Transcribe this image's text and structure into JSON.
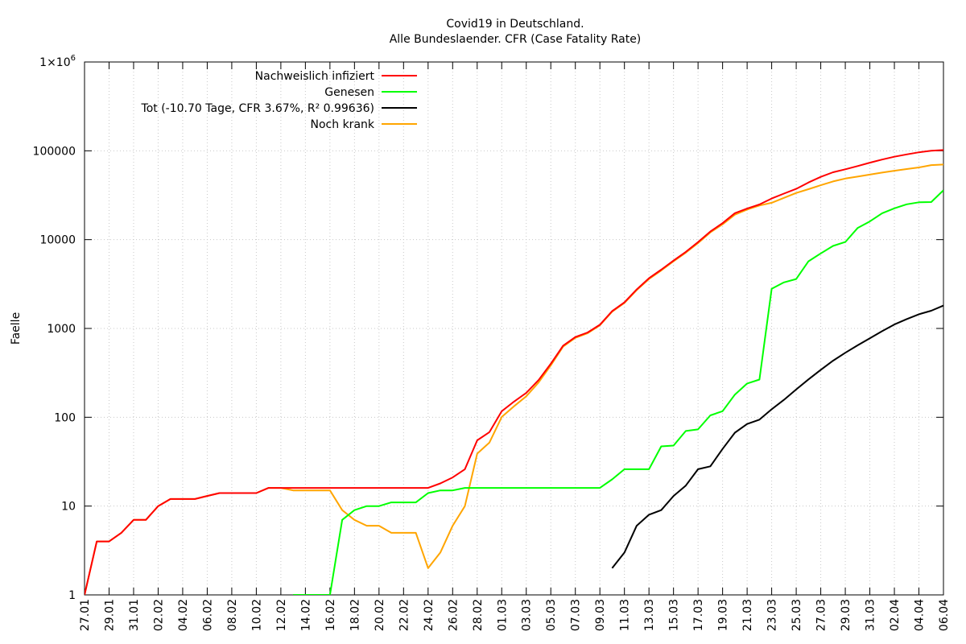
{
  "chart_data": {
    "type": "line",
    "title": "Covid19 in Deutschland.",
    "subtitle": "Alle Bundeslaender. CFR (Case Fatality Rate)",
    "ylabel": "Faelle",
    "xlabel": "",
    "yscale": "log",
    "ylim": [
      1,
      1000000
    ],
    "y_ticks": [
      {
        "value": 1,
        "label": "1"
      },
      {
        "value": 10,
        "label": "10"
      },
      {
        "value": 100,
        "label": "100"
      },
      {
        "value": 1000,
        "label": "1000"
      },
      {
        "value": 10000,
        "label": "10000"
      },
      {
        "value": 100000,
        "label": "100000"
      },
      {
        "value": 1000000,
        "label": "1×10",
        "sup": "6"
      }
    ],
    "x_start": "2020-01-27",
    "x_end": "2020-04-06",
    "x_tick_labels": [
      "27.01",
      "29.01",
      "31.01",
      "02.02",
      "04.02",
      "06.02",
      "08.02",
      "10.02",
      "12.02",
      "14.02",
      "16.02",
      "18.02",
      "20.02",
      "22.02",
      "24.02",
      "26.02",
      "28.02",
      "01.03",
      "03.03",
      "05.03",
      "07.03",
      "09.03",
      "11.03",
      "13.03",
      "15.03",
      "17.03",
      "19.03",
      "21.03",
      "23.03",
      "25.03",
      "27.03",
      "29.03",
      "31.03",
      "02.04",
      "04.04",
      "06.04"
    ],
    "grid": true,
    "legend_position": "top-left",
    "series": [
      {
        "name": "Nachweislich infiziert",
        "color": "#ff0000",
        "x": [
          "27.01",
          "28.01",
          "29.01",
          "30.01",
          "31.01",
          "01.02",
          "02.02",
          "03.02",
          "04.02",
          "05.02",
          "06.02",
          "07.02",
          "08.02",
          "09.02",
          "10.02",
          "11.02",
          "12.02",
          "13.02",
          "14.02",
          "15.02",
          "16.02",
          "17.02",
          "18.02",
          "19.02",
          "20.02",
          "21.02",
          "22.02",
          "23.02",
          "24.02",
          "25.02",
          "26.02",
          "27.02",
          "28.02",
          "29.02",
          "01.03",
          "02.03",
          "03.03",
          "04.03",
          "05.03",
          "06.03",
          "07.03",
          "08.03",
          "09.03",
          "10.03",
          "11.03",
          "12.03",
          "13.03",
          "14.03",
          "15.03",
          "16.03",
          "17.03",
          "18.03",
          "19.03",
          "20.03",
          "21.03",
          "22.03",
          "23.03",
          "24.03",
          "25.03",
          "26.03",
          "27.03",
          "28.03",
          "29.03",
          "30.03",
          "31.03",
          "01.04",
          "02.04",
          "03.04",
          "04.04",
          "05.04",
          "06.04"
        ],
        "y": [
          1,
          4,
          4,
          5,
          7,
          7,
          10,
          12,
          12,
          12,
          13,
          14,
          14,
          14,
          14,
          16,
          16,
          16,
          16,
          16,
          16,
          16,
          16,
          16,
          16,
          16,
          16,
          16,
          16,
          18,
          21,
          26,
          55,
          68,
          117,
          150,
          188,
          262,
          400,
          640,
          800,
          900,
          1100,
          1565,
          1966,
          2745,
          3675,
          4585,
          5813,
          7272,
          9360,
          12327,
          15320,
          19848,
          22364,
          24873,
          29056,
          32986,
          37323,
          43938,
          50871,
          57298,
          61913,
          67366,
          73522,
          79696,
          85778,
          91159,
          96092,
          100123,
          102000
        ]
      },
      {
        "name": "Genesen",
        "color": "#00ff00",
        "x": [
          "13.02",
          "14.02",
          "15.02",
          "16.02",
          "17.02",
          "18.02",
          "19.02",
          "20.02",
          "21.02",
          "22.02",
          "23.02",
          "24.02",
          "25.02",
          "26.02",
          "27.02",
          "28.02",
          "29.02",
          "01.03",
          "02.03",
          "03.03",
          "04.03",
          "05.03",
          "06.03",
          "07.03",
          "08.03",
          "09.03",
          "10.03",
          "11.03",
          "12.03",
          "13.03",
          "14.03",
          "15.03",
          "16.03",
          "17.03",
          "18.03",
          "19.03",
          "20.03",
          "21.03",
          "22.03",
          "23.03",
          "24.03",
          "25.03",
          "26.03",
          "27.03",
          "28.03",
          "29.03",
          "30.03",
          "31.03",
          "01.04",
          "02.04",
          "03.04",
          "04.04",
          "05.04",
          "06.04"
        ],
        "y": [
          1,
          1,
          1,
          1,
          7,
          9,
          10,
          10,
          11,
          11,
          11,
          14,
          15,
          15,
          16,
          16,
          16,
          16,
          16,
          16,
          16,
          16,
          16,
          16,
          16,
          16,
          20,
          26,
          26,
          26,
          47,
          48,
          70,
          73,
          105,
          117,
          180,
          240,
          266,
          2800,
          3300,
          3600,
          5700,
          7000,
          8500,
          9400,
          13500,
          16000,
          19800,
          22500,
          25000,
          26300,
          26500,
          36000
        ]
      },
      {
        "name": "Tot (-10.70 Tage, CFR 3.67%, R² 0.99636)",
        "color": "#000000",
        "x": [
          "10.03",
          "11.03",
          "12.03",
          "13.03",
          "14.03",
          "15.03",
          "16.03",
          "17.03",
          "18.03",
          "19.03",
          "20.03",
          "21.03",
          "22.03",
          "23.03",
          "24.03",
          "25.03",
          "26.03",
          "27.03",
          "28.03",
          "29.03",
          "30.03",
          "31.03",
          "01.04",
          "02.04",
          "03.04",
          "04.04",
          "05.04",
          "06.04"
        ],
        "y": [
          2,
          3,
          6,
          8,
          9,
          13,
          17,
          26,
          28,
          44,
          67,
          84,
          94,
          123,
          157,
          206,
          267,
          342,
          433,
          533,
          645,
          775,
          931,
          1107,
          1275,
          1444,
          1584,
          1810
        ]
      },
      {
        "name": "Noch krank",
        "color": "#ffa500",
        "x": [
          "27.01",
          "28.01",
          "29.01",
          "30.01",
          "31.01",
          "01.02",
          "02.02",
          "03.02",
          "04.02",
          "05.02",
          "06.02",
          "07.02",
          "08.02",
          "09.02",
          "10.02",
          "11.02",
          "12.02",
          "13.02",
          "14.02",
          "15.02",
          "16.02",
          "17.02",
          "18.02",
          "19.02",
          "20.02",
          "21.02",
          "22.02",
          "23.02",
          "24.02",
          "25.02",
          "26.02",
          "27.02",
          "28.02",
          "29.02",
          "01.03",
          "02.03",
          "03.03",
          "04.03",
          "05.03",
          "06.03",
          "07.03",
          "08.03",
          "09.03",
          "10.03",
          "11.03",
          "12.03",
          "13.03",
          "14.03",
          "15.03",
          "16.03",
          "17.03",
          "18.03",
          "19.03",
          "20.03",
          "21.03",
          "22.03",
          "23.03",
          "24.03",
          "25.03",
          "26.03",
          "27.03",
          "28.03",
          "29.03",
          "30.03",
          "31.03",
          "01.04",
          "02.04",
          "03.04",
          "04.04",
          "05.04",
          "06.04"
        ],
        "y": [
          1,
          4,
          4,
          5,
          7,
          7,
          10,
          12,
          12,
          12,
          13,
          14,
          14,
          14,
          14,
          16,
          16,
          15,
          15,
          15,
          15,
          9,
          7,
          6,
          6,
          5,
          5,
          5,
          2,
          3,
          6,
          10,
          39,
          52,
          101,
          133,
          172,
          246,
          384,
          624,
          784,
          884,
          1084,
          1543,
          1937,
          2700,
          3600,
          4490,
          5700,
          7120,
          9130,
          12070,
          14870,
          19100,
          21800,
          24200,
          26000,
          29500,
          33500,
          37000,
          41000,
          45200,
          48700,
          51200,
          54000,
          56900,
          59700,
          62300,
          65000,
          69000,
          70000
        ]
      }
    ]
  }
}
